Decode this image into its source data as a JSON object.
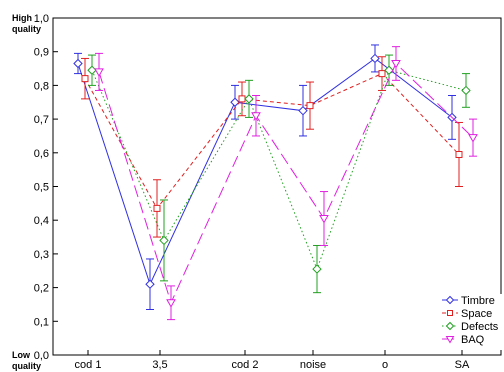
{
  "chart_data": {
    "type": "line",
    "title": "",
    "xlabel": "",
    "ylabel": "",
    "ylim": [
      0.0,
      1.0
    ],
    "yticks": [
      "0,0",
      "0,1",
      "0,2",
      "0,3",
      "0,4",
      "0,5",
      "0,6",
      "0,7",
      "0,8",
      "0,9",
      "1,0"
    ],
    "ytick_values": [
      0,
      0.1,
      0.2,
      0.3,
      0.4,
      0.5,
      0.6,
      0.7,
      0.8,
      0.9,
      1.0
    ],
    "y_extreme_labels": {
      "high_1": "High",
      "high_2": "quality",
      "low_1": "Low",
      "low_2": "quality"
    },
    "categories": [
      "cod 1",
      "3,5",
      "cod 2",
      "noise",
      "o",
      "SA"
    ],
    "grid": false,
    "legend_position": "bottom-right",
    "series": [
      {
        "name": "Timbre",
        "color": "#3030e0",
        "marker": "diamond",
        "dash": "solid",
        "values": [
          0.865,
          0.21,
          0.75,
          0.725,
          0.88,
          0.705
        ],
        "err": [
          0.03,
          0.075,
          0.05,
          0.075,
          0.04,
          0.065
        ]
      },
      {
        "name": "Space",
        "color": "#e02020",
        "marker": "square",
        "dash": "short",
        "values": [
          0.82,
          0.435,
          0.76,
          0.74,
          0.835,
          0.595
        ],
        "err": [
          0.06,
          0.085,
          0.05,
          0.07,
          0.05,
          0.095
        ]
      },
      {
        "name": "Defects",
        "color": "#20a020",
        "marker": "diamond",
        "dash": "dot",
        "values": [
          0.845,
          0.34,
          0.76,
          0.255,
          0.845,
          0.785
        ],
        "err": [
          0.045,
          0.12,
          0.055,
          0.07,
          0.045,
          0.05
        ]
      },
      {
        "name": "BAQ",
        "color": "#e020e0",
        "marker": "triangle",
        "dash": "long",
        "values": [
          0.84,
          0.155,
          0.71,
          0.405,
          0.865,
          0.645
        ],
        "err": [
          0.055,
          0.05,
          0.06,
          0.08,
          0.05,
          0.055
        ]
      }
    ]
  }
}
